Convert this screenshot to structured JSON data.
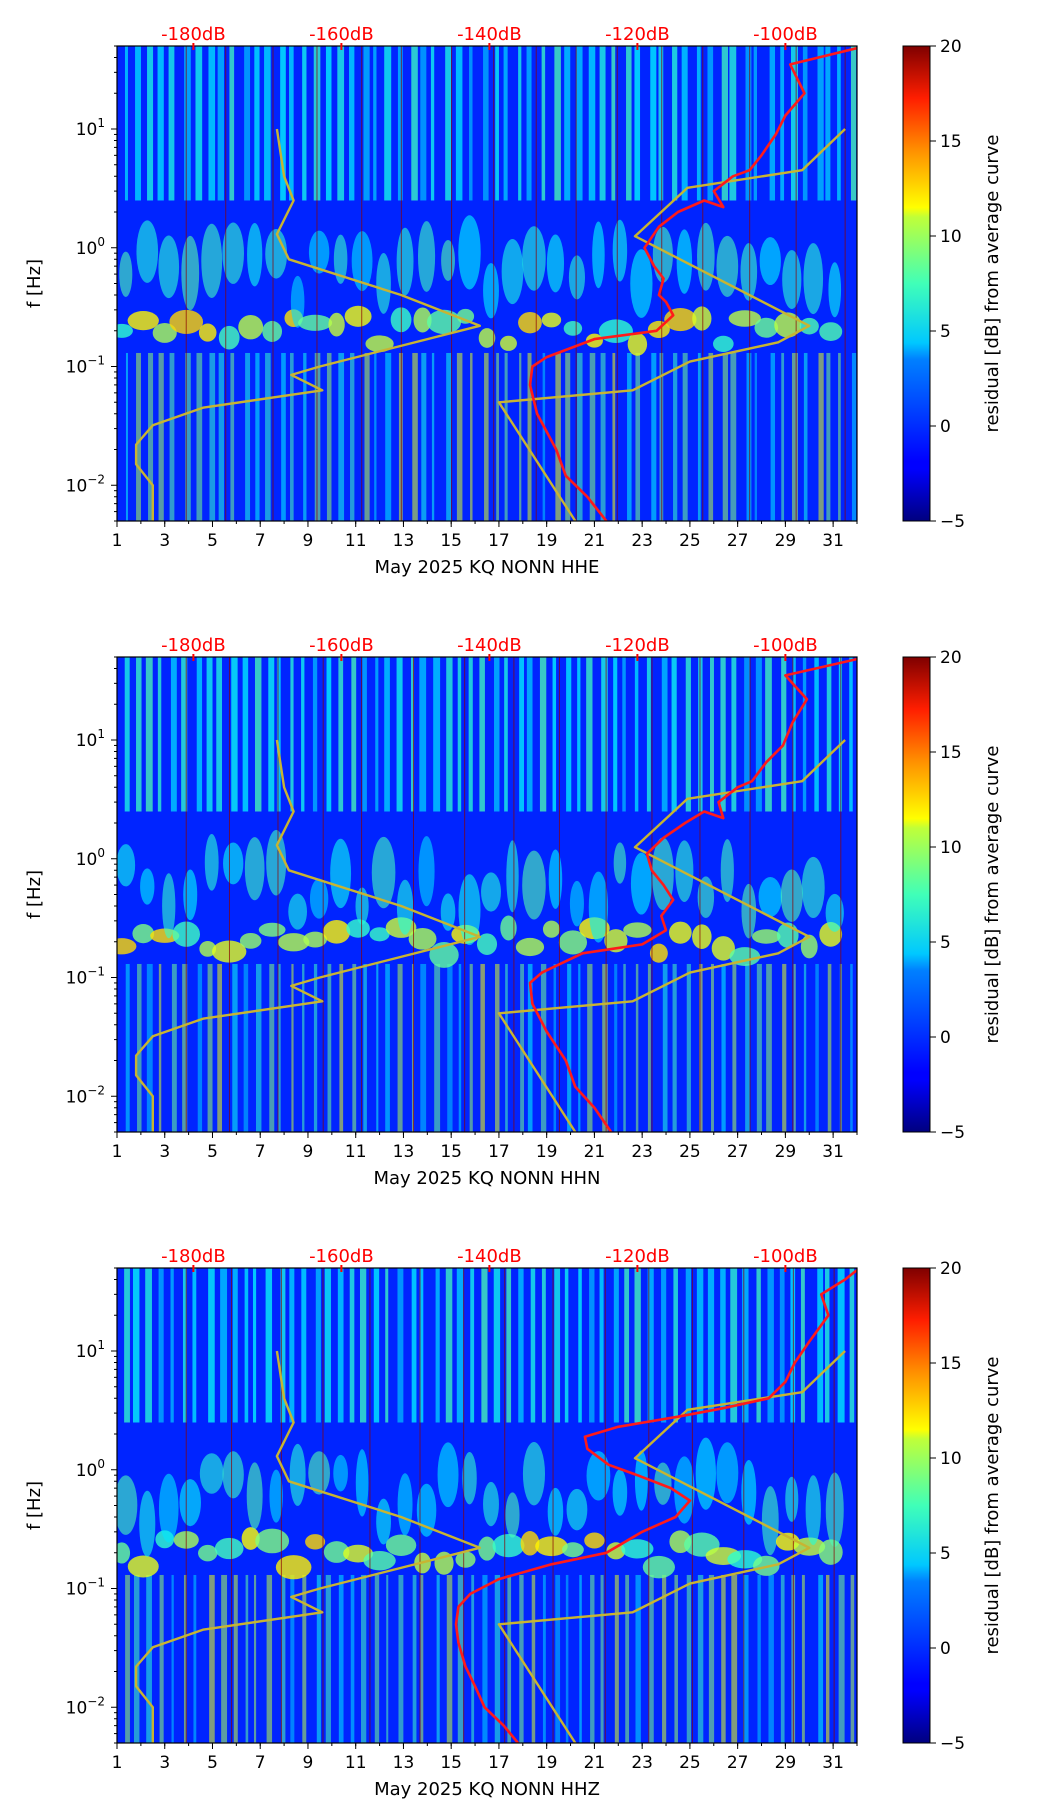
{
  "chart_data": [
    {
      "type": "heatmap",
      "title": "",
      "xlabel": "May 2025 KQ NONN  HHE",
      "ylabel": "f [Hz]",
      "colorbar_label": "residual [dB] from average curve",
      "x_range": [
        1,
        32
      ],
      "y_range": [
        0.005,
        50
      ],
      "y_scale": "log",
      "x_ticks": [
        1,
        3,
        5,
        7,
        9,
        11,
        13,
        15,
        17,
        19,
        21,
        23,
        25,
        27,
        29,
        31
      ],
      "y_ticks": [
        {
          "value": 0.01,
          "base": "10",
          "exp": "−2"
        },
        {
          "value": 0.1,
          "base": "10",
          "exp": "−1"
        },
        {
          "value": 1,
          "base": "10",
          "exp": "0"
        },
        {
          "value": 10,
          "base": "10",
          "exp": "1"
        }
      ],
      "colorbar_range": [
        -5,
        20
      ],
      "colorbar_ticks": [
        "−5",
        "0",
        "5",
        "10",
        "15",
        "20"
      ],
      "db_labels": [
        {
          "x": 4.2,
          "text": "-180dB"
        },
        {
          "x": 10.4,
          "text": "-160dB"
        },
        {
          "x": 16.6,
          "text": "-140dB"
        },
        {
          "x": 22.8,
          "text": "-120dB"
        },
        {
          "x": 29.0,
          "text": "-100dB"
        }
      ],
      "series": [
        {
          "name": "reference-noise-model",
          "color": "#c8b432",
          "points": [
            [
              2.5,
              0.005
            ],
            [
              2.5,
              0.01
            ],
            [
              1.8,
              0.015
            ],
            [
              1.8,
              0.022
            ],
            [
              2.5,
              0.032
            ],
            [
              4.6,
              0.045
            ],
            [
              9.6,
              0.063
            ],
            [
              8.3,
              0.085
            ],
            [
              9.5,
              0.1
            ],
            [
              16.2,
              0.22
            ],
            [
              12.9,
              0.4
            ],
            [
              8.2,
              0.8
            ],
            [
              7.7,
              1.3
            ],
            [
              8.4,
              2.5
            ],
            [
              8.0,
              4.0
            ],
            [
              7.7,
              10
            ]
          ]
        },
        {
          "name": "reference-noise-model",
          "color": "#c8b432",
          "points": [
            [
              20.2,
              0.005
            ],
            [
              17.0,
              0.05
            ],
            [
              22.6,
              0.063
            ],
            [
              25.0,
              0.11
            ],
            [
              28.7,
              0.16
            ],
            [
              30.0,
              0.22
            ],
            [
              22.7,
              1.25
            ],
            [
              24.9,
              3.2
            ],
            [
              29.7,
              4.5
            ],
            [
              31.5,
              10
            ]
          ]
        },
        {
          "name": "average-psd-curve",
          "color": "#ff1a1a",
          "points": [
            [
              21.5,
              0.005
            ],
            [
              20.7,
              0.008
            ],
            [
              19.8,
              0.012
            ],
            [
              19.4,
              0.02
            ],
            [
              18.6,
              0.04
            ],
            [
              18.3,
              0.07
            ],
            [
              18.4,
              0.1
            ],
            [
              19.0,
              0.12
            ],
            [
              21.0,
              0.17
            ],
            [
              23.6,
              0.2
            ],
            [
              24.3,
              0.27
            ],
            [
              24.0,
              0.35
            ],
            [
              23.7,
              0.4
            ],
            [
              23.9,
              0.55
            ],
            [
              23.5,
              0.7
            ],
            [
              23.1,
              1.0
            ],
            [
              23.7,
              1.5
            ],
            [
              24.5,
              2.0
            ],
            [
              25.6,
              2.5
            ],
            [
              26.4,
              2.2
            ],
            [
              26.0,
              3.0
            ],
            [
              26.8,
              4.0
            ],
            [
              27.5,
              4.5
            ],
            [
              28.0,
              6.0
            ],
            [
              28.6,
              9.0
            ],
            [
              29.0,
              13
            ],
            [
              29.8,
              20
            ],
            [
              29.2,
              35
            ],
            [
              32.0,
              48
            ]
          ]
        }
      ]
    },
    {
      "type": "heatmap",
      "title": "",
      "xlabel": "May 2025 KQ NONN  HHN",
      "ylabel": "f [Hz]",
      "colorbar_label": "residual [dB] from average curve",
      "x_range": [
        1,
        32
      ],
      "y_range": [
        0.005,
        50
      ],
      "y_scale": "log",
      "x_ticks": [
        1,
        3,
        5,
        7,
        9,
        11,
        13,
        15,
        17,
        19,
        21,
        23,
        25,
        27,
        29,
        31
      ],
      "y_ticks": [
        {
          "value": 0.01,
          "base": "10",
          "exp": "−2"
        },
        {
          "value": 0.1,
          "base": "10",
          "exp": "−1"
        },
        {
          "value": 1,
          "base": "10",
          "exp": "0"
        },
        {
          "value": 10,
          "base": "10",
          "exp": "1"
        }
      ],
      "colorbar_range": [
        -5,
        20
      ],
      "colorbar_ticks": [
        "−5",
        "0",
        "5",
        "10",
        "15",
        "20"
      ],
      "db_labels": [
        {
          "x": 4.2,
          "text": "-180dB"
        },
        {
          "x": 10.4,
          "text": "-160dB"
        },
        {
          "x": 16.6,
          "text": "-140dB"
        },
        {
          "x": 22.8,
          "text": "-120dB"
        },
        {
          "x": 29.0,
          "text": "-100dB"
        }
      ],
      "series": [
        {
          "name": "reference-noise-model",
          "color": "#c8b432",
          "points": [
            [
              2.5,
              0.005
            ],
            [
              2.5,
              0.01
            ],
            [
              1.8,
              0.015
            ],
            [
              1.8,
              0.022
            ],
            [
              2.5,
              0.032
            ],
            [
              4.6,
              0.045
            ],
            [
              9.6,
              0.063
            ],
            [
              8.3,
              0.085
            ],
            [
              9.5,
              0.1
            ],
            [
              16.2,
              0.22
            ],
            [
              12.9,
              0.4
            ],
            [
              8.2,
              0.8
            ],
            [
              7.7,
              1.3
            ],
            [
              8.4,
              2.5
            ],
            [
              8.0,
              4.0
            ],
            [
              7.7,
              10
            ]
          ]
        },
        {
          "name": "reference-noise-model",
          "color": "#c8b432",
          "points": [
            [
              20.2,
              0.005
            ],
            [
              17.0,
              0.05
            ],
            [
              22.6,
              0.063
            ],
            [
              25.0,
              0.11
            ],
            [
              28.7,
              0.16
            ],
            [
              30.0,
              0.22
            ],
            [
              22.7,
              1.25
            ],
            [
              24.9,
              3.2
            ],
            [
              29.7,
              4.5
            ],
            [
              31.5,
              10
            ]
          ]
        },
        {
          "name": "average-psd-curve",
          "color": "#ff1a1a",
          "points": [
            [
              21.7,
              0.005
            ],
            [
              21.0,
              0.008
            ],
            [
              20.2,
              0.012
            ],
            [
              19.8,
              0.02
            ],
            [
              19.0,
              0.035
            ],
            [
              18.4,
              0.06
            ],
            [
              18.3,
              0.09
            ],
            [
              18.8,
              0.11
            ],
            [
              20.5,
              0.16
            ],
            [
              23.0,
              0.19
            ],
            [
              24.0,
              0.25
            ],
            [
              23.8,
              0.33
            ],
            [
              24.3,
              0.45
            ],
            [
              23.9,
              0.6
            ],
            [
              23.4,
              0.8
            ],
            [
              23.2,
              1.1
            ],
            [
              23.9,
              1.5
            ],
            [
              24.8,
              2.0
            ],
            [
              25.6,
              2.5
            ],
            [
              26.4,
              2.2
            ],
            [
              26.2,
              3.0
            ],
            [
              27.0,
              4.0
            ],
            [
              27.6,
              4.5
            ],
            [
              28.2,
              6.5
            ],
            [
              28.9,
              9.0
            ],
            [
              29.3,
              14
            ],
            [
              29.9,
              22
            ],
            [
              29.0,
              35
            ],
            [
              32.0,
              48
            ]
          ]
        }
      ]
    },
    {
      "type": "heatmap",
      "title": "",
      "xlabel": "May 2025 KQ NONN  HHZ",
      "ylabel": "f [Hz]",
      "colorbar_label": "residual [dB] from average curve",
      "x_range": [
        1,
        32
      ],
      "y_range": [
        0.005,
        50
      ],
      "y_scale": "log",
      "x_ticks": [
        1,
        3,
        5,
        7,
        9,
        11,
        13,
        15,
        17,
        19,
        21,
        23,
        25,
        27,
        29,
        31
      ],
      "y_ticks": [
        {
          "value": 0.01,
          "base": "10",
          "exp": "−2"
        },
        {
          "value": 0.1,
          "base": "10",
          "exp": "−1"
        },
        {
          "value": 1,
          "base": "10",
          "exp": "0"
        },
        {
          "value": 10,
          "base": "10",
          "exp": "1"
        }
      ],
      "colorbar_range": [
        -5,
        20
      ],
      "colorbar_ticks": [
        "−5",
        "0",
        "5",
        "10",
        "15",
        "20"
      ],
      "db_labels": [
        {
          "x": 4.2,
          "text": "-180dB"
        },
        {
          "x": 10.4,
          "text": "-160dB"
        },
        {
          "x": 16.6,
          "text": "-140dB"
        },
        {
          "x": 22.8,
          "text": "-120dB"
        },
        {
          "x": 29.0,
          "text": "-100dB"
        }
      ],
      "series": [
        {
          "name": "reference-noise-model",
          "color": "#c8b432",
          "points": [
            [
              2.5,
              0.005
            ],
            [
              2.5,
              0.01
            ],
            [
              1.8,
              0.015
            ],
            [
              1.8,
              0.022
            ],
            [
              2.5,
              0.032
            ],
            [
              4.6,
              0.045
            ],
            [
              9.6,
              0.063
            ],
            [
              8.3,
              0.085
            ],
            [
              9.5,
              0.1
            ],
            [
              16.2,
              0.22
            ],
            [
              12.9,
              0.4
            ],
            [
              8.2,
              0.8
            ],
            [
              7.7,
              1.3
            ],
            [
              8.4,
              2.5
            ],
            [
              8.0,
              4.0
            ],
            [
              7.7,
              10
            ]
          ]
        },
        {
          "name": "reference-noise-model",
          "color": "#c8b432",
          "points": [
            [
              20.2,
              0.005
            ],
            [
              17.0,
              0.05
            ],
            [
              22.6,
              0.063
            ],
            [
              25.0,
              0.11
            ],
            [
              28.7,
              0.16
            ],
            [
              30.0,
              0.22
            ],
            [
              22.7,
              1.25
            ],
            [
              24.9,
              3.2
            ],
            [
              29.7,
              4.5
            ],
            [
              31.5,
              10
            ]
          ]
        },
        {
          "name": "average-psd-curve",
          "color": "#ff1a1a",
          "points": [
            [
              17.8,
              0.005
            ],
            [
              17.2,
              0.007
            ],
            [
              16.4,
              0.01
            ],
            [
              16.0,
              0.015
            ],
            [
              15.6,
              0.022
            ],
            [
              15.3,
              0.035
            ],
            [
              15.2,
              0.05
            ],
            [
              15.3,
              0.07
            ],
            [
              15.8,
              0.09
            ],
            [
              17.0,
              0.12
            ],
            [
              19.2,
              0.16
            ],
            [
              21.5,
              0.2
            ],
            [
              23.0,
              0.3
            ],
            [
              24.4,
              0.4
            ],
            [
              25.0,
              0.55
            ],
            [
              24.2,
              0.7
            ],
            [
              22.8,
              0.9
            ],
            [
              21.6,
              1.1
            ],
            [
              20.7,
              1.5
            ],
            [
              20.6,
              1.9
            ],
            [
              22.0,
              2.3
            ],
            [
              24.5,
              2.8
            ],
            [
              26.4,
              3.3
            ],
            [
              28.3,
              4.0
            ],
            [
              29.0,
              5.5
            ],
            [
              29.4,
              8.0
            ],
            [
              30.0,
              12
            ],
            [
              30.8,
              20
            ],
            [
              30.5,
              30
            ],
            [
              31.5,
              40
            ],
            [
              32.0,
              48
            ]
          ]
        }
      ]
    }
  ]
}
